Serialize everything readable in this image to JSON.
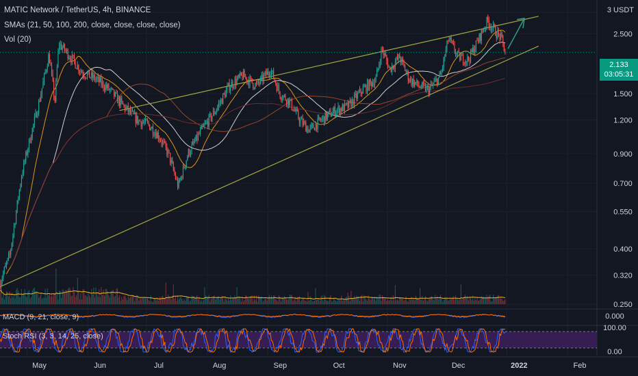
{
  "header": {
    "title": "MATIC Network / TetherUS, 4h, BINANCE",
    "sma_label": "SMAs (21, 50, 100, 200, close, close, close, close)",
    "vol_label": "Vol (20)",
    "currency": "3 USDT"
  },
  "price_tag": {
    "price": "2.133",
    "countdown": "03:05:31"
  },
  "indicators": {
    "macd_label": "MACD (9, 21, close, 9)",
    "stoch_label": "Stoch RSI (3, 3, 14, 25, close)",
    "macd_zero": "0.000",
    "stoch_top": "100.00",
    "stoch_bottom": "0.00"
  },
  "colors": {
    "background": "#131722",
    "up": "#26a69a",
    "down": "#ef5350",
    "trendline": "#a5a843",
    "arrow": "#2e9e8a",
    "price_badge": "#089981",
    "stoch_band": "#3d1f5c",
    "sma21": "#f7a21b",
    "sma50": "#e6e6e6",
    "sma100": "#a84a2a",
    "sma200": "#7a2f2f"
  },
  "chart_data": {
    "type": "candlestick",
    "scale": "log",
    "y_axis_ticks": [
      "3 USDT",
      "2.500",
      "1.500",
      "1.200",
      "0.900",
      "0.700",
      "0.550",
      "0.400",
      "0.320",
      "0.250"
    ],
    "x_axis_ticks": [
      "May",
      "Jun",
      "Jul",
      "Aug",
      "Sep",
      "Oct",
      "Nov",
      "Dec",
      "2022",
      "Feb"
    ],
    "x": [
      "Apr 20",
      "Apr 25",
      "May 1",
      "May 5",
      "May 10",
      "May 15",
      "May 18",
      "May 20",
      "May 25",
      "Jun 1",
      "Jun 8",
      "Jun 15",
      "Jun 22",
      "Jun 29",
      "Jul 5",
      "Jul 10",
      "Jul 15",
      "Jul 20",
      "Jul 25",
      "Aug 1",
      "Aug 8",
      "Aug 15",
      "Aug 22",
      "Aug 29",
      "Sep 5",
      "Sep 10",
      "Sep 15",
      "Sep 20",
      "Sep 25",
      "Oct 1",
      "Oct 8",
      "Oct 15",
      "Oct 22",
      "Oct 29",
      "Nov 1",
      "Nov 5",
      "Nov 10",
      "Nov 15",
      "Nov 20",
      "Nov 25",
      "Dec 1",
      "Dec 5",
      "Dec 10",
      "Dec 15",
      "Dec 20",
      "Dec 25",
      "Dec 28",
      "Jan 1",
      "Jan 3"
    ],
    "close": [
      0.3,
      0.38,
      0.75,
      1.0,
      1.4,
      2.1,
      1.4,
      2.3,
      2.1,
      1.8,
      1.7,
      1.55,
      1.35,
      1.2,
      1.15,
      1.05,
      0.9,
      0.68,
      0.9,
      1.1,
      1.3,
      1.6,
      1.75,
      1.6,
      1.85,
      1.5,
      1.4,
      1.2,
      1.1,
      1.2,
      1.3,
      1.35,
      1.55,
      1.7,
      2.2,
      1.85,
      2.05,
      1.7,
      1.6,
      1.55,
      1.75,
      2.4,
      2.05,
      2.0,
      2.35,
      2.8,
      2.6,
      2.4,
      2.13
    ],
    "trendlines": [
      {
        "name": "upper",
        "from": [
          "Jun 20",
          1.3
        ],
        "to": [
          "Jan 20",
          2.9
        ]
      },
      {
        "name": "lower",
        "from": [
          "Apr 20",
          0.29
        ],
        "to": [
          "Jan 20",
          2.25
        ]
      }
    ],
    "last_price": 2.133,
    "stoch_range": [
      0,
      100
    ],
    "macd_zero": 0
  }
}
